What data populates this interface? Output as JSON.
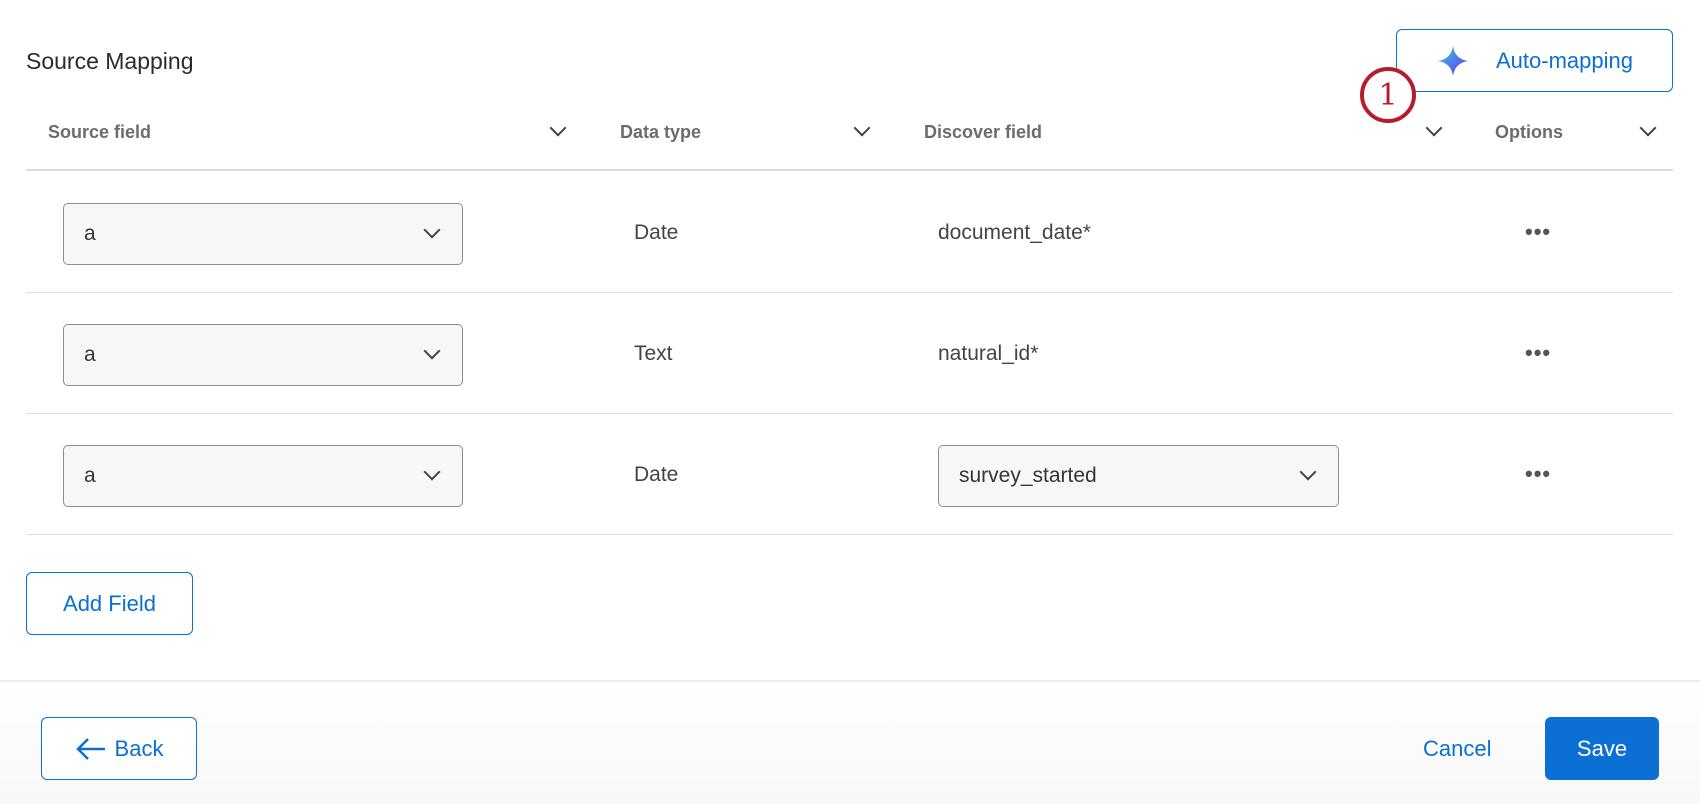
{
  "title": "Source Mapping",
  "auto_mapping": {
    "label": "Auto-mapping",
    "icon": "sparkle-icon"
  },
  "annotation_badge": "1",
  "columns": [
    {
      "label": "Source field"
    },
    {
      "label": "Data type"
    },
    {
      "label": "Discover field"
    },
    {
      "label": "Options"
    }
  ],
  "rows": [
    {
      "source": "a",
      "data_type": "Date",
      "discover": "document_date*",
      "discover_is_dropdown": false
    },
    {
      "source": "a",
      "data_type": "Text",
      "discover": "natural_id*",
      "discover_is_dropdown": false
    },
    {
      "source": "a",
      "data_type": "Date",
      "discover": "survey_started",
      "discover_is_dropdown": true
    }
  ],
  "options_icon": "•••",
  "add_field": "Add Field",
  "footer": {
    "back": "Back",
    "cancel": "Cancel",
    "save": "Save"
  },
  "colors": {
    "accent": "#0b6fd3",
    "badge": "#b51d2f"
  }
}
